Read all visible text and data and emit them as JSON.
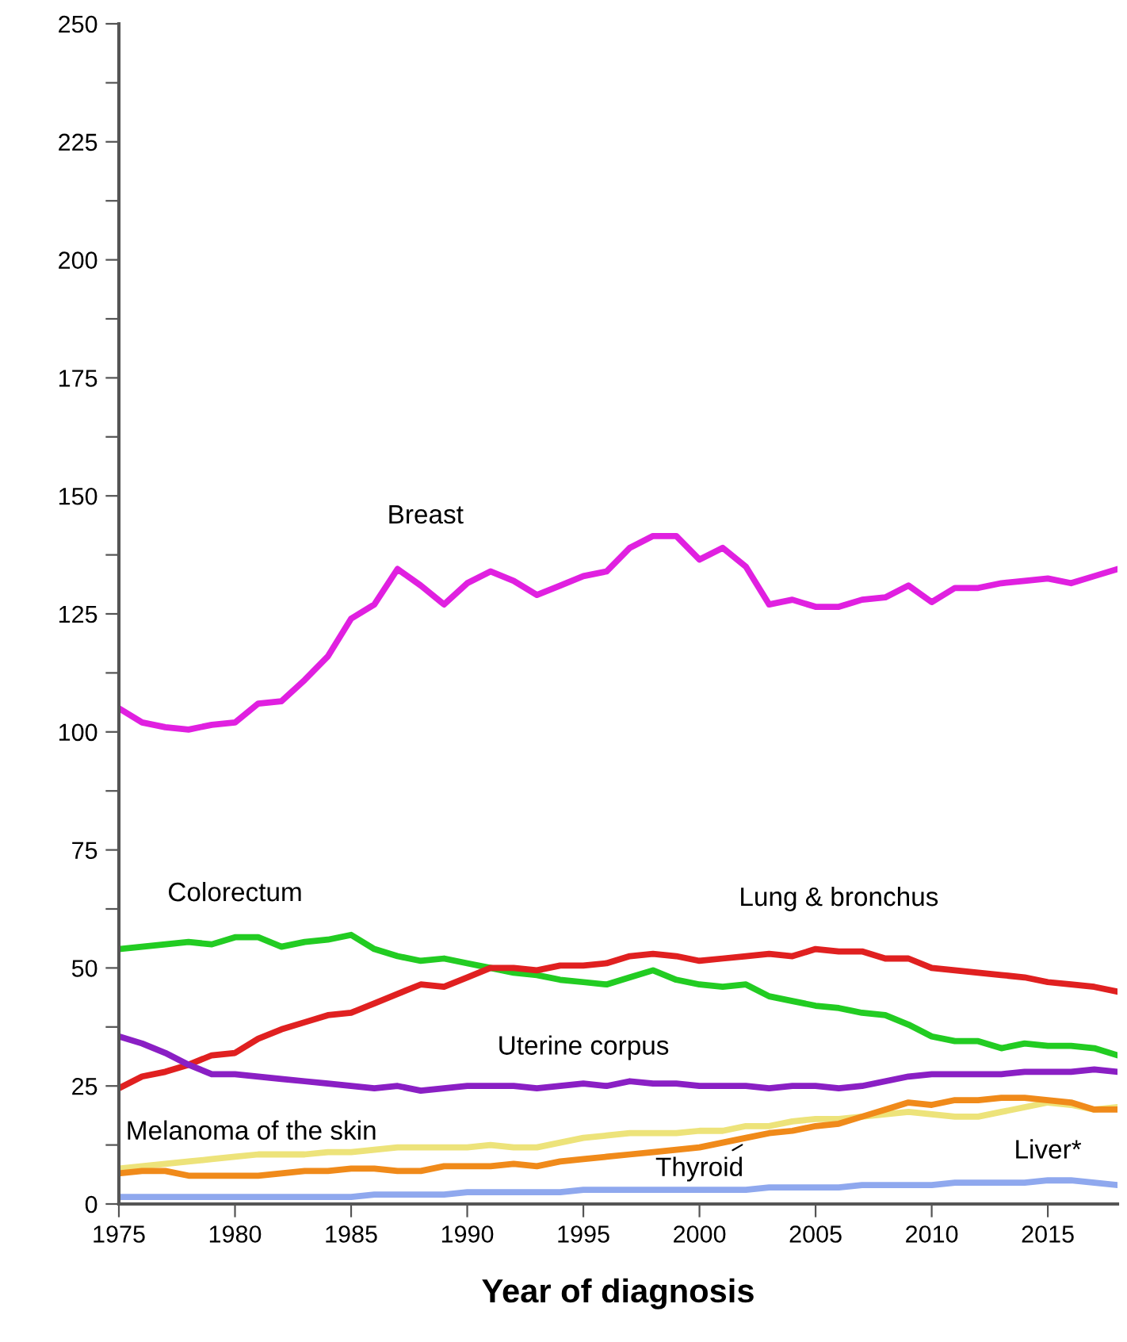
{
  "chart_data": {
    "type": "line",
    "xlabel": "Year of diagnosis",
    "x": [
      1975,
      1976,
      1977,
      1978,
      1979,
      1980,
      1981,
      1982,
      1983,
      1984,
      1985,
      1986,
      1987,
      1988,
      1989,
      1990,
      1991,
      1992,
      1993,
      1994,
      1995,
      1996,
      1997,
      1998,
      1999,
      2000,
      2001,
      2002,
      2003,
      2004,
      2005,
      2006,
      2007,
      2008,
      2009,
      2010,
      2011,
      2012,
      2013,
      2014,
      2015,
      2016,
      2017,
      2018
    ],
    "series": [
      {
        "name": "Breast",
        "color": "#e020e0",
        "values": [
          105,
          102,
          101,
          100.5,
          101.5,
          102,
          106,
          106.5,
          111,
          116,
          124,
          127,
          134.5,
          131,
          127,
          131.5,
          134,
          132,
          129,
          131,
          133,
          134,
          139,
          141.5,
          141.5,
          136.5,
          139,
          135,
          127,
          128,
          126.5,
          126.5,
          128,
          128.5,
          131,
          127.5,
          130.5,
          130.5,
          131.5,
          132,
          132.5,
          131.5,
          133,
          134.5
        ]
      },
      {
        "name": "Colorectum",
        "color": "#22cc22",
        "values": [
          54,
          54.5,
          55,
          55.5,
          55,
          56.5,
          56.5,
          54.5,
          55.5,
          56,
          57,
          54,
          52.5,
          51.5,
          52,
          51,
          50,
          49,
          48.5,
          47.5,
          47,
          46.5,
          48,
          49.5,
          47.5,
          46.5,
          46,
          46.5,
          44,
          43,
          42,
          41.5,
          40.5,
          40,
          38,
          35.5,
          34.5,
          34.5,
          33,
          34,
          33.5,
          33.5,
          33,
          31.5
        ]
      },
      {
        "name": "Lung & bronchus",
        "color": "#e02020",
        "values": [
          24.5,
          27,
          28,
          29.5,
          31.5,
          32,
          35,
          37,
          38.5,
          40,
          40.5,
          42.5,
          44.5,
          46.5,
          46,
          48,
          50,
          50,
          49.5,
          50.5,
          50.5,
          51,
          52.5,
          53,
          52.5,
          51.5,
          52,
          52.5,
          53,
          52.5,
          54,
          53.5,
          53.5,
          52,
          52,
          50,
          49.5,
          49,
          48.5,
          48,
          47,
          46.5,
          46,
          45
        ]
      },
      {
        "name": "Uterine corpus",
        "color": "#8a1fc4",
        "values": [
          35.5,
          34,
          32,
          29.5,
          27.5,
          27.5,
          27,
          26.5,
          26,
          25.5,
          25,
          24.5,
          25,
          24,
          24.5,
          25,
          25,
          25,
          24.5,
          25,
          25.5,
          25,
          26,
          25.5,
          25.5,
          25,
          25,
          25,
          24.5,
          25,
          25,
          24.5,
          25,
          26,
          27,
          27.5,
          27.5,
          27.5,
          27.5,
          28,
          28,
          28,
          28.5,
          28
        ]
      },
      {
        "name": "Melanoma of the skin",
        "color": "#ede37a",
        "values": [
          7.5,
          8,
          8.5,
          9,
          9.5,
          10,
          10.5,
          10.5,
          10.5,
          11,
          11,
          11.5,
          12,
          12,
          12,
          12,
          12.5,
          12,
          12,
          13,
          14,
          14.5,
          15,
          15,
          15,
          15.5,
          15.5,
          16.5,
          16.5,
          17.5,
          18,
          18,
          18.5,
          19,
          19.5,
          19,
          18.5,
          18.5,
          19.5,
          20.5,
          21.5,
          21,
          20,
          20.5
        ]
      },
      {
        "name": "Thyroid",
        "color": "#f08a1a",
        "values": [
          6.5,
          7,
          7,
          6,
          6,
          6,
          6,
          6.5,
          7,
          7,
          7.5,
          7.5,
          7,
          7,
          8,
          8,
          8,
          8.5,
          8,
          9,
          9.5,
          10,
          10.5,
          11,
          11.5,
          12,
          13,
          14,
          15,
          15.5,
          16.5,
          17,
          18.5,
          20,
          21.5,
          21,
          22,
          22,
          22.5,
          22.5,
          22,
          21.5,
          20,
          20
        ]
      },
      {
        "name": "Liver*",
        "color": "#8fa8ee",
        "values": [
          1.5,
          1.5,
          1.5,
          1.5,
          1.5,
          1.5,
          1.5,
          1.5,
          1.5,
          1.5,
          1.5,
          2,
          2,
          2,
          2,
          2.5,
          2.5,
          2.5,
          2.5,
          2.5,
          3,
          3,
          3,
          3,
          3,
          3,
          3,
          3,
          3.5,
          3.5,
          3.5,
          3.5,
          4,
          4,
          4,
          4,
          4.5,
          4.5,
          4.5,
          4.5,
          5,
          5,
          4.5,
          4
        ]
      }
    ],
    "xlim": [
      1975,
      2018
    ],
    "xticks": [
      1975,
      1980,
      1985,
      1990,
      1995,
      2000,
      2005,
      2010,
      2015
    ],
    "ylim": [
      0,
      250
    ],
    "yticks": [
      0,
      {
        "value": 12.5,
        "label": null
      },
      25,
      {
        "value": 37.5,
        "label": null
      },
      50,
      {
        "value": 62.5,
        "label": null
      },
      75,
      {
        "value": 87.5,
        "label": null
      },
      100,
      {
        "value": 112.5,
        "label": null
      },
      125,
      {
        "value": 137.5,
        "label": null
      },
      150,
      {
        "value": 162.5,
        "label": null
      },
      175,
      {
        "value": 187.5,
        "label": null
      },
      200,
      {
        "value": 212.5,
        "label": null
      },
      225,
      {
        "value": 237.5,
        "label": null
      },
      250
    ],
    "grid": false,
    "legend": false,
    "marker": "none",
    "line_style": "solid"
  }
}
